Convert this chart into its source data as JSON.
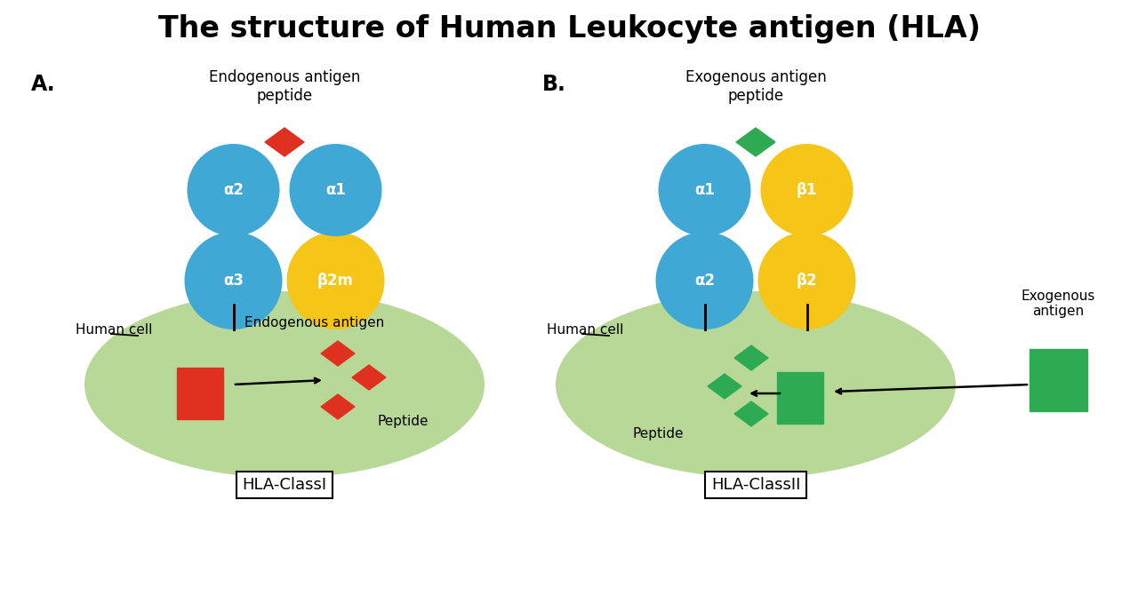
{
  "title": "The structure of Human Leukocyte antigen (HLA)",
  "title_fontsize": 24,
  "background_color": "#ffffff",
  "blue_color": "#3fa8d5",
  "yellow_color": "#f5c518",
  "green_color": "#2eaa52",
  "red_color": "#e03020",
  "cell_color": "#b8d898",
  "cell_edge_color": "#b8d898",
  "label_A": "A.",
  "label_B": "B.",
  "label_endogenous": "Endogenous antigen\npeptide",
  "label_exogenous": "Exogenous antigen\npeptide",
  "label_human_cell_A": "Human cell",
  "label_human_cell_B": "Human cell",
  "label_endogenous_antigen": "Endogenous antigen",
  "label_peptide_A": "Peptide",
  "label_peptide_B": "Peptide",
  "label_exogenous_antigen": "Exogenous\nantigen",
  "label_classI": "HLA-ClassI",
  "label_classII": "HLA-ClassII",
  "alpha2_label": "α2",
  "alpha1_label": "α1",
  "alpha3_label": "α3",
  "beta2m_label": "β2m",
  "alpha1_II_label": "α1",
  "beta1_label": "β1",
  "alpha2_II_label": "α2",
  "beta2_II_label": "β2"
}
